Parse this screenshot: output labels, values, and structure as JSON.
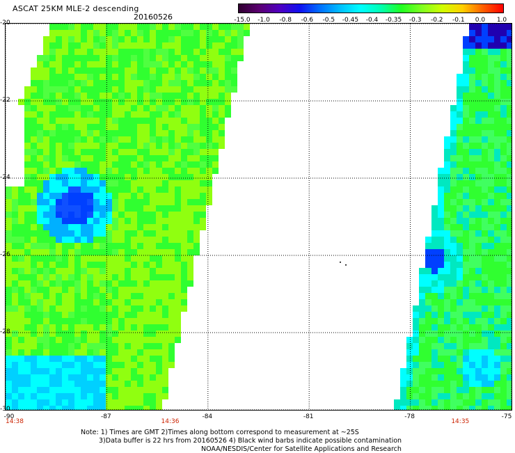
{
  "header": {
    "title": "ASCAT 25KM MLE-2 descending",
    "date": "20160526"
  },
  "colorbar": {
    "labels": [
      "-15.0",
      "-1.0",
      "-0.8",
      "-0.6",
      "-0.5",
      "-0.45",
      "-0.4",
      "-0.35",
      "-0.3",
      "-0.2",
      "-0.1",
      "0.0",
      "1.0"
    ],
    "colors": [
      "#300030",
      "#5a0070",
      "#5000c0",
      "#1010f0",
      "#0070ff",
      "#00c0ff",
      "#00ffff",
      "#00ffb0",
      "#20ff20",
      "#80ff20",
      "#d0ff00",
      "#ffd000",
      "#ff6000",
      "#ff0000"
    ]
  },
  "map": {
    "lat_labels": [
      "-20",
      "-22",
      "-24",
      "-26",
      "-28",
      "-30"
    ],
    "lon_labels": [
      "-90",
      "-87",
      "-84",
      "-81",
      "-78",
      "-75"
    ],
    "lat_range": [
      -30,
      -20
    ],
    "lon_range": [
      -90,
      -75
    ],
    "pass_times": [
      {
        "lon": -90,
        "label": "14:38"
      },
      {
        "lon": -85.1,
        "label": "14:36"
      },
      {
        "lon": -76.5,
        "label": "14:35"
      }
    ],
    "palette": {
      "bright_green": "#30ff30",
      "yellow_green": "#90ff10",
      "cyan": "#00ffff",
      "aqua": "#00e8c0",
      "blue": "#0040ff",
      "purple": "#2000b0"
    }
  },
  "footer": {
    "line1": "Note: 1) Times are GMT 2)Times along bottom correspond to measurement at ~25S",
    "line2": "3)Data buffer is 22 hrs from 20160526 4) Black wind barbs indicate possible contamination",
    "line3": "NOAA/NESDIS/Center for Satellite Applications and Research"
  }
}
